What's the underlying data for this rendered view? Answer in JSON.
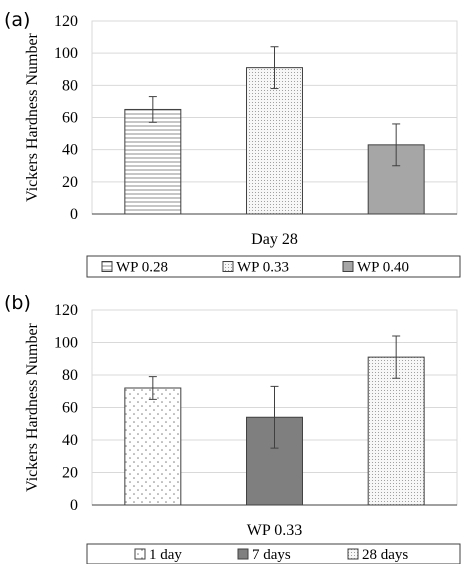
{
  "chart_data": [
    {
      "type": "bar",
      "panel_label": "(a)",
      "xlabel": "Day 28",
      "ylabel": "Vickers Hardness Number",
      "ylim": [
        0,
        120
      ],
      "yticks": [
        0,
        20,
        40,
        60,
        80,
        100,
        120
      ],
      "grid": true,
      "legend_position": "bottom",
      "series": [
        {
          "name": "WP 0.28",
          "value": 65,
          "error": 8,
          "fill": "hlines",
          "color": "#ffffff"
        },
        {
          "name": "WP 0.33",
          "value": 91,
          "error": 13,
          "fill": "fine-dots",
          "color": "#f2f2f2"
        },
        {
          "name": "WP 0.40",
          "value": 43,
          "error": 13,
          "fill": "solid",
          "color": "#a6a6a6"
        }
      ]
    },
    {
      "type": "bar",
      "panel_label": "(b)",
      "xlabel": "WP 0.33",
      "ylabel": "Vickers Hardness Number",
      "ylim": [
        0,
        120
      ],
      "yticks": [
        0,
        20,
        40,
        60,
        80,
        100,
        120
      ],
      "grid": true,
      "legend_position": "bottom",
      "series": [
        {
          "name": "1 day",
          "value": 72,
          "error": 7,
          "fill": "sparse-dots",
          "color": "#ffffff"
        },
        {
          "name": "7 days",
          "value": 54,
          "error": 19,
          "fill": "solid",
          "color": "#7f7f7f"
        },
        {
          "name": "28 days",
          "value": 91,
          "error": 13,
          "fill": "fine-dots",
          "color": "#f2f2f2"
        }
      ]
    }
  ]
}
